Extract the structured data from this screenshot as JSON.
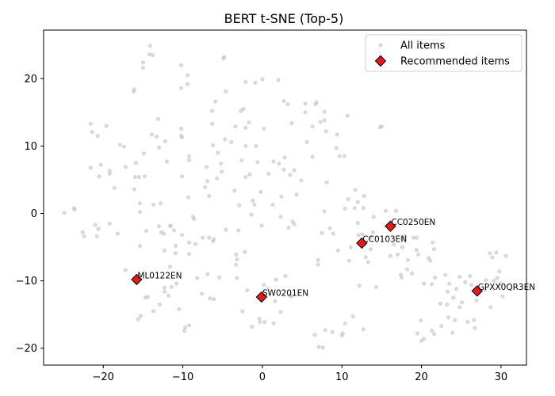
{
  "chart_data": {
    "type": "scatter",
    "title": "BERT t-SNE (Top-5)",
    "xlabel": "",
    "ylabel": "",
    "xlim": [
      -27.5,
      33.2
    ],
    "ylim": [
      -22.5,
      27.2
    ],
    "xticks": [
      -20,
      -10,
      0,
      10,
      20,
      30
    ],
    "yticks": [
      -20,
      -10,
      0,
      10,
      20
    ],
    "legend_position": "top-right",
    "series": [
      {
        "name": "All items",
        "color": "#bfbfbf",
        "points": [
          [
            -24.9,
            0.1
          ],
          [
            -23.7,
            0.8
          ],
          [
            -23.6,
            0.6
          ],
          [
            -22.6,
            -2.8
          ],
          [
            -22.4,
            -3.4
          ],
          [
            -21.6,
            6.8
          ],
          [
            -21.6,
            13.3
          ],
          [
            -21.4,
            12.1
          ],
          [
            -21.0,
            -1.7
          ],
          [
            -20.8,
            -3.4
          ],
          [
            -20.7,
            11.5
          ],
          [
            -20.6,
            -2.3
          ],
          [
            -20.3,
            7.2
          ],
          [
            -20.5,
            5.5
          ],
          [
            -19.6,
            13.0
          ],
          [
            -19.2,
            5.9
          ],
          [
            -19.2,
            6.3
          ],
          [
            -19.2,
            -1.5
          ],
          [
            -18.6,
            3.8
          ],
          [
            -18.2,
            -3.0
          ],
          [
            -17.9,
            10.2
          ],
          [
            -17.4,
            9.9
          ],
          [
            -17.2,
            6.9
          ],
          [
            -17.2,
            -8.4
          ],
          [
            -16.2,
            18.1
          ],
          [
            -16.1,
            18.4
          ],
          [
            -16.1,
            3.6
          ],
          [
            -16.0,
            5.4
          ],
          [
            -15.9,
            7.5
          ],
          [
            -15.7,
            -10.1
          ],
          [
            -15.6,
            -15.7
          ],
          [
            -15.5,
            5.4
          ],
          [
            -15.4,
            1.5
          ],
          [
            -15.4,
            0.2
          ],
          [
            -15.4,
            -4.8
          ],
          [
            -15.3,
            -15.2
          ],
          [
            -15.0,
            21.6
          ],
          [
            -15.0,
            22.4
          ],
          [
            -14.9,
            8.9
          ],
          [
            -14.8,
            5.5
          ],
          [
            -14.7,
            -12.5
          ],
          [
            -14.6,
            -2.6
          ],
          [
            -14.4,
            -12.4
          ],
          [
            -14.2,
            23.6
          ],
          [
            -14.1,
            24.9
          ],
          [
            -13.9,
            11.7
          ],
          [
            -13.8,
            23.5
          ],
          [
            -13.7,
            1.3
          ],
          [
            -13.7,
            -14.5
          ],
          [
            -13.3,
            11.4
          ],
          [
            -13.1,
            14.0
          ],
          [
            -13.0,
            9.8
          ],
          [
            -13.0,
            -1.9
          ],
          [
            -12.9,
            -13.5
          ],
          [
            -12.8,
            1.5
          ],
          [
            -12.7,
            -2.8
          ],
          [
            -12.4,
            -3.0
          ],
          [
            -12.3,
            -5.5
          ],
          [
            -12.3,
            -11.0
          ],
          [
            -12.3,
            -11.6
          ],
          [
            -12.2,
            10.7
          ],
          [
            -12.0,
            7.7
          ],
          [
            -11.8,
            -12.2
          ],
          [
            -11.6,
            -1.9
          ],
          [
            -11.6,
            -7.9
          ],
          [
            -11.5,
            -1.8
          ],
          [
            -11.4,
            -10.9
          ],
          [
            -11.1,
            -2.5
          ],
          [
            -10.9,
            -4.8
          ],
          [
            -10.9,
            -5.9
          ],
          [
            -10.8,
            -10.4
          ],
          [
            -10.5,
            -14.2
          ],
          [
            -10.2,
            22.0
          ],
          [
            -10.2,
            18.6
          ],
          [
            -10.2,
            12.6
          ],
          [
            -10.2,
            11.5
          ],
          [
            -10.1,
            11.3
          ],
          [
            -10.1,
            5.5
          ],
          [
            -10.1,
            -3.2
          ],
          [
            -9.8,
            -17.4
          ],
          [
            -9.7,
            -16.9
          ],
          [
            -9.4,
            20.5
          ],
          [
            -9.4,
            19.2
          ],
          [
            -9.3,
            2.4
          ],
          [
            -9.2,
            8.5
          ],
          [
            -9.2,
            7.9
          ],
          [
            -9.2,
            -4.3
          ],
          [
            -9.2,
            -6.0
          ],
          [
            -9.2,
            -16.6
          ],
          [
            -8.7,
            -0.5
          ],
          [
            -8.6,
            -0.8
          ],
          [
            -8.4,
            -4.5
          ],
          [
            -8.2,
            -9.6
          ],
          [
            -7.6,
            -11.9
          ],
          [
            -7.5,
            -3.6
          ],
          [
            -7.2,
            3.9
          ],
          [
            -7.0,
            6.9
          ],
          [
            -6.9,
            4.8
          ],
          [
            -6.9,
            -9.0
          ],
          [
            -6.7,
            2.6
          ],
          [
            -6.7,
            -3.6
          ],
          [
            -6.6,
            -12.6
          ],
          [
            -6.3,
            15.2
          ],
          [
            -6.3,
            13.3
          ],
          [
            -6.2,
            10.1
          ],
          [
            -6.2,
            -4.1
          ],
          [
            -6.1,
            -3.8
          ],
          [
            -6.1,
            -12.7
          ],
          [
            -5.9,
            16.6
          ],
          [
            -5.7,
            5.2
          ],
          [
            -5.6,
            9.0
          ],
          [
            -5.4,
            -9.5
          ],
          [
            -5.2,
            7.4
          ],
          [
            -5.1,
            6.2
          ],
          [
            -4.9,
            23.0
          ],
          [
            -4.8,
            23.2
          ],
          [
            -4.7,
            11.0
          ],
          [
            -4.6,
            18.1
          ],
          [
            -4.6,
            -2.4
          ],
          [
            -3.9,
            10.6
          ],
          [
            -3.5,
            3.4
          ],
          [
            -3.4,
            12.9
          ],
          [
            -3.3,
            -6.1
          ],
          [
            -3.2,
            -6.8
          ],
          [
            -3.2,
            -9.6
          ],
          [
            -3.3,
            -7.6
          ],
          [
            -3.0,
            -2.5
          ],
          [
            -2.9,
            1.2
          ],
          [
            -2.7,
            15.2
          ],
          [
            -2.6,
            7.9
          ],
          [
            -2.5,
            -14.5
          ],
          [
            -2.4,
            15.5
          ],
          [
            -2.2,
            -5.7
          ],
          [
            -2.1,
            19.5
          ],
          [
            -2.1,
            12.7
          ],
          [
            -2.1,
            10.0
          ],
          [
            -2.1,
            5.4
          ],
          [
            -1.9,
            -11.4
          ],
          [
            -1.7,
            13.5
          ],
          [
            -1.6,
            5.8
          ],
          [
            -1.4,
            -0.2
          ],
          [
            -1.3,
            -16.8
          ],
          [
            -1.2,
            1.9
          ],
          [
            -1.0,
            1.3
          ],
          [
            -0.9,
            19.4
          ],
          [
            -0.8,
            10.0
          ],
          [
            -0.6,
            7.6
          ],
          [
            -0.4,
            -15.6
          ],
          [
            -0.3,
            -16.1
          ],
          [
            -0.2,
            3.2
          ],
          [
            -0.1,
            -1.8
          ],
          [
            0.0,
            19.9
          ],
          [
            0.2,
            12.6
          ],
          [
            0.2,
            -10.6
          ],
          [
            0.3,
            -16.1
          ],
          [
            0.7,
            -11.2
          ],
          [
            0.8,
            5.9
          ],
          [
            1.3,
            1.3
          ],
          [
            1.4,
            7.7
          ],
          [
            1.4,
            -16.3
          ],
          [
            1.6,
            -13.0
          ],
          [
            1.7,
            -9.8
          ],
          [
            2.0,
            19.8
          ],
          [
            2.1,
            7.4
          ],
          [
            2.3,
            -0.5
          ],
          [
            2.3,
            -14.6
          ],
          [
            2.4,
            2.5
          ],
          [
            2.7,
            16.7
          ],
          [
            2.7,
            6.5
          ],
          [
            2.8,
            8.3
          ],
          [
            2.9,
            -9.3
          ],
          [
            3.2,
            16.2
          ],
          [
            3.3,
            -2.1
          ],
          [
            3.5,
            5.7
          ],
          [
            3.5,
            -12.2
          ],
          [
            3.7,
            13.4
          ],
          [
            3.7,
            -12.3
          ],
          [
            3.8,
            -1.2
          ],
          [
            4.0,
            6.4
          ],
          [
            4.0,
            -1.6
          ],
          [
            4.3,
            2.8
          ],
          [
            4.9,
            4.9
          ],
          [
            5.4,
            16.3
          ],
          [
            5.4,
            15.0
          ],
          [
            5.6,
            10.6
          ],
          [
            6.3,
            8.4
          ],
          [
            6.3,
            12.9
          ],
          [
            6.6,
            -18.0
          ],
          [
            6.7,
            16.2
          ],
          [
            6.8,
            16.5
          ],
          [
            7.0,
            -6.9
          ],
          [
            7.0,
            -7.6
          ],
          [
            7.1,
            -19.8
          ],
          [
            7.3,
            13.6
          ],
          [
            7.5,
            -2.9
          ],
          [
            7.6,
            -19.9
          ],
          [
            7.8,
            0.3
          ],
          [
            7.8,
            15.1
          ],
          [
            7.8,
            13.8
          ],
          [
            7.9,
            -17.3
          ],
          [
            8.0,
            12.2
          ],
          [
            8.1,
            4.6
          ],
          [
            8.5,
            -2.2
          ],
          [
            8.8,
            -17.6
          ],
          [
            8.9,
            -3.0
          ],
          [
            9.3,
            9.7
          ],
          [
            9.4,
            11.7
          ],
          [
            9.5,
            -5.5
          ],
          [
            9.7,
            8.5
          ],
          [
            10.0,
            -18.1
          ],
          [
            10.1,
            -17.8
          ],
          [
            10.3,
            8.5
          ],
          [
            10.4,
            0.7
          ],
          [
            10.4,
            -16.3
          ],
          [
            10.7,
            14.5
          ],
          [
            10.8,
            2.1
          ],
          [
            10.9,
            -7.0
          ],
          [
            11.1,
            -5.0
          ],
          [
            11.4,
            -15.3
          ],
          [
            11.6,
            0.8
          ],
          [
            11.7,
            3.5
          ],
          [
            12.0,
            1.7
          ],
          [
            12.0,
            -1.4
          ],
          [
            12.1,
            -3.2
          ],
          [
            12.2,
            -10.7
          ],
          [
            12.6,
            -3.1
          ],
          [
            12.7,
            0.8
          ],
          [
            12.7,
            -17.2
          ],
          [
            12.8,
            2.6
          ],
          [
            13.0,
            -6.5
          ],
          [
            13.3,
            -7.2
          ],
          [
            13.6,
            -3.6
          ],
          [
            13.6,
            -5.3
          ],
          [
            13.9,
            -2.8
          ],
          [
            14.0,
            -0.5
          ],
          [
            14.3,
            -10.9
          ],
          [
            14.8,
            12.8
          ],
          [
            15.0,
            12.9
          ],
          [
            15.5,
            0.4
          ],
          [
            15.8,
            -1.7
          ],
          [
            16.1,
            -6.3
          ],
          [
            16.5,
            -4.6
          ],
          [
            16.8,
            0.4
          ],
          [
            17.0,
            -6.1
          ],
          [
            17.4,
            -9.1
          ],
          [
            17.5,
            -9.5
          ],
          [
            17.6,
            -3.8
          ],
          [
            17.6,
            -5.0
          ],
          [
            17.9,
            -3.3
          ],
          [
            18.2,
            -8.3
          ],
          [
            18.3,
            -6.9
          ],
          [
            18.8,
            -8.9
          ],
          [
            19.0,
            -3.6
          ],
          [
            19.4,
            -3.6
          ],
          [
            19.4,
            -5.4
          ],
          [
            19.5,
            -17.8
          ],
          [
            19.6,
            -6.1
          ],
          [
            19.9,
            -15.9
          ],
          [
            20.0,
            -18.9
          ],
          [
            20.3,
            -18.6
          ],
          [
            20.3,
            -10.4
          ],
          [
            20.9,
            -6.6
          ],
          [
            21.1,
            -7.0
          ],
          [
            21.3,
            -10.5
          ],
          [
            21.3,
            -17.4
          ],
          [
            21.4,
            -4.3
          ],
          [
            21.6,
            -5.3
          ],
          [
            21.6,
            -17.9
          ],
          [
            21.7,
            -9.5
          ],
          [
            22.4,
            -13.4
          ],
          [
            22.5,
            -16.7
          ],
          [
            23.0,
            -9.1
          ],
          [
            23.2,
            -13.5
          ],
          [
            23.3,
            -11.6
          ],
          [
            23.4,
            -15.4
          ],
          [
            23.5,
            -10.4
          ],
          [
            23.9,
            -17.7
          ],
          [
            24.0,
            -12.5
          ],
          [
            24.2,
            -15.8
          ],
          [
            24.4,
            -11.2
          ],
          [
            24.8,
            -9.4
          ],
          [
            24.8,
            -13.9
          ],
          [
            25.1,
            -13.2
          ],
          [
            25.5,
            -10.2
          ],
          [
            25.8,
            -16.1
          ],
          [
            26.1,
            -9.3
          ],
          [
            26.3,
            -10.6
          ],
          [
            26.6,
            -15.8
          ],
          [
            26.7,
            -17.0
          ],
          [
            26.9,
            -12.9
          ],
          [
            27.2,
            -11.6
          ],
          [
            28.0,
            -11.3
          ],
          [
            28.1,
            -9.9
          ],
          [
            28.6,
            -5.9
          ],
          [
            28.7,
            -13.9
          ],
          [
            28.9,
            -6.5
          ],
          [
            29.1,
            -10.0
          ],
          [
            29.4,
            -5.8
          ],
          [
            29.5,
            -9.6
          ],
          [
            29.8,
            -8.6
          ],
          [
            29.9,
            -10.4
          ],
          [
            30.2,
            -12.3
          ],
          [
            30.6,
            -6.3
          ]
        ]
      },
      {
        "name": "Recommended items",
        "color": "#e41a1c",
        "points": [
          {
            "label": "ML0122EN",
            "x": -15.8,
            "y": -9.8
          },
          {
            "label": "SW0201EN",
            "x": -0.1,
            "y": -12.4
          },
          {
            "label": "CC0103EN",
            "x": 12.5,
            "y": -4.4
          },
          {
            "label": "CC0250EN",
            "x": 16.1,
            "y": -1.9
          },
          {
            "label": "GPXX0QR3EN",
            "x": 27.0,
            "y": -11.5
          }
        ]
      }
    ]
  }
}
